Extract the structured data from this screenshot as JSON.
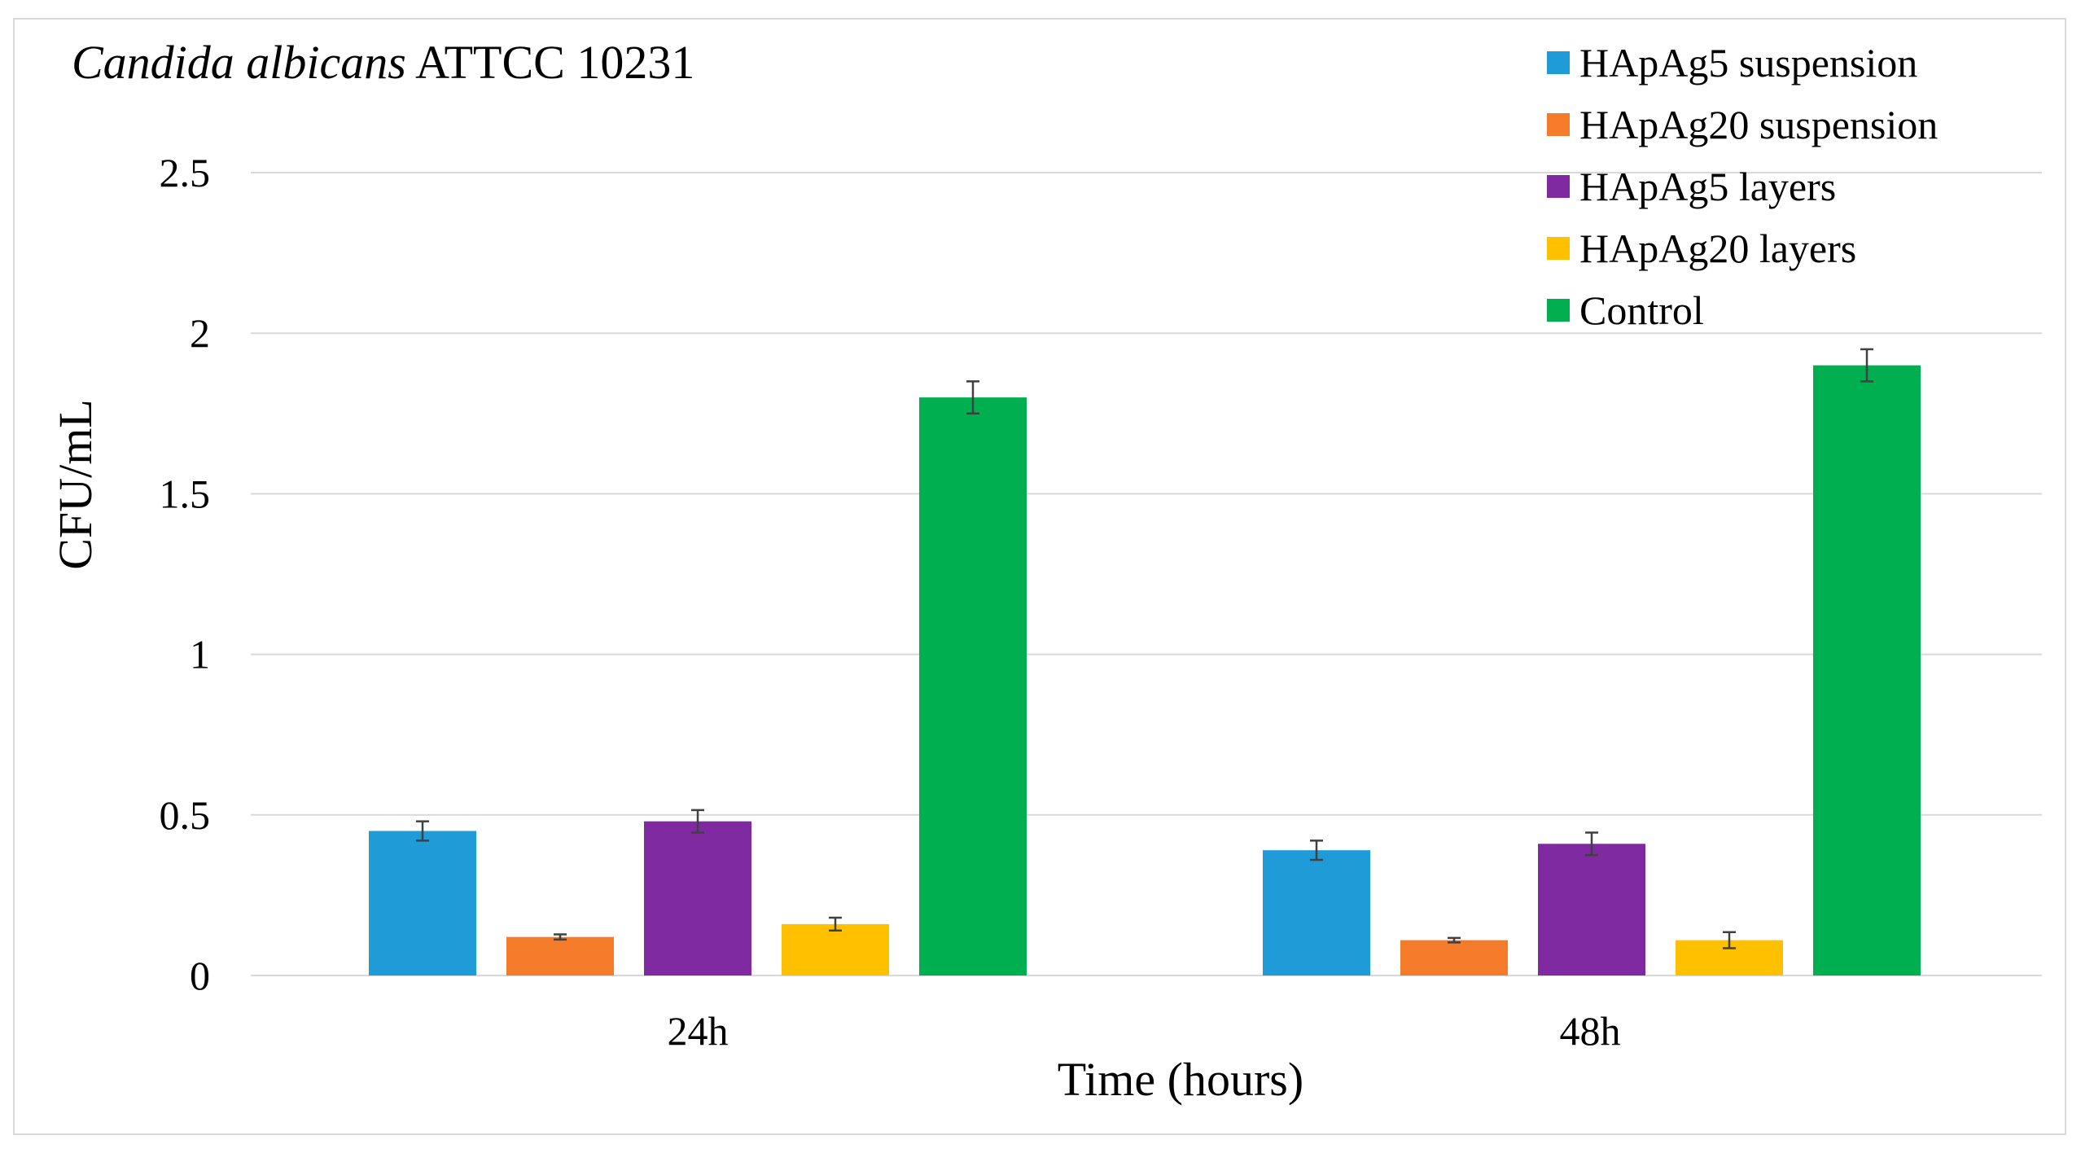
{
  "chart_data": {
    "type": "bar",
    "title_italic": "Candida albicans",
    "title_rest": " ATTCC 10231",
    "xlabel": "Time (hours)",
    "ylabel": "CFU/mL",
    "categories": [
      "24h",
      "48h"
    ],
    "ylim": [
      0,
      2.5
    ],
    "yticks": [
      0,
      0.5,
      1,
      1.5,
      2,
      2.5
    ],
    "ytick_labels": [
      "0",
      "0.5",
      "1",
      "1.5",
      "2",
      "2.5"
    ],
    "grid": true,
    "legend_position": "top-right",
    "series": [
      {
        "name": "HApAg5 suspension",
        "color": "#1f9bd7",
        "values": [
          0.45,
          0.39
        ],
        "errors": [
          0.03,
          0.03
        ]
      },
      {
        "name": "HApAg20 suspension",
        "color": "#f47b2a",
        "values": [
          0.12,
          0.11
        ],
        "errors": [
          0.008,
          0.007
        ]
      },
      {
        "name": "HApAg5 layers",
        "color": "#7f2aa0",
        "values": [
          0.48,
          0.41
        ],
        "errors": [
          0.035,
          0.035
        ]
      },
      {
        "name": "HApAg20 layers",
        "color": "#ffc000",
        "values": [
          0.16,
          0.11
        ],
        "errors": [
          0.02,
          0.025
        ]
      },
      {
        "name": "Control",
        "color": "#00b050",
        "values": [
          1.8,
          1.9
        ],
        "errors": [
          0.05,
          0.05
        ]
      }
    ]
  }
}
